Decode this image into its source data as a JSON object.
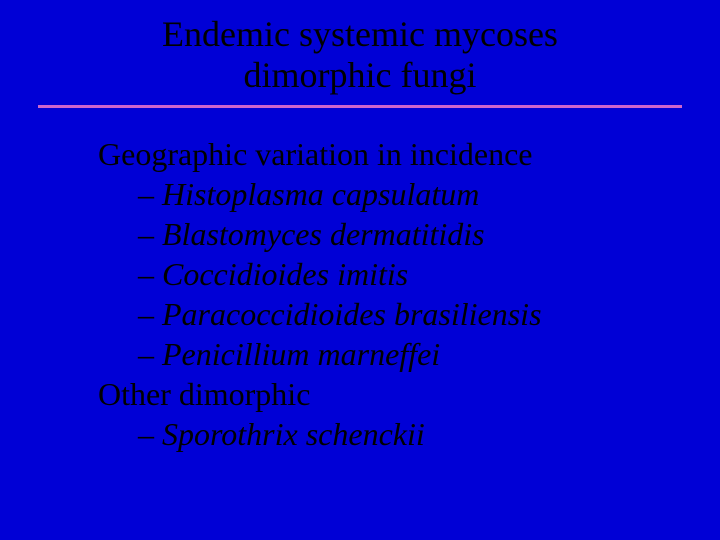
{
  "colors": {
    "background": "#0000d6",
    "text": "#000000",
    "underline": "#cc66cc"
  },
  "typography": {
    "family": "Times New Roman",
    "title_size_pt": 36,
    "body_size_pt": 32
  },
  "title": {
    "line1": "Endemic systemic mycoses",
    "line2": "dimorphic fungi"
  },
  "sections": [
    {
      "label": "Geographic variation in incidence",
      "items": [
        "Histoplasma capsulatum",
        "Blastomyces dermatitidis",
        "Coccidioides imitis",
        "Paracoccidioides brasiliensis",
        "Penicillium marneffei"
      ]
    },
    {
      "label": "Other dimorphic",
      "items": [
        "Sporothrix schenckii"
      ]
    }
  ],
  "bullet_dash": "– "
}
